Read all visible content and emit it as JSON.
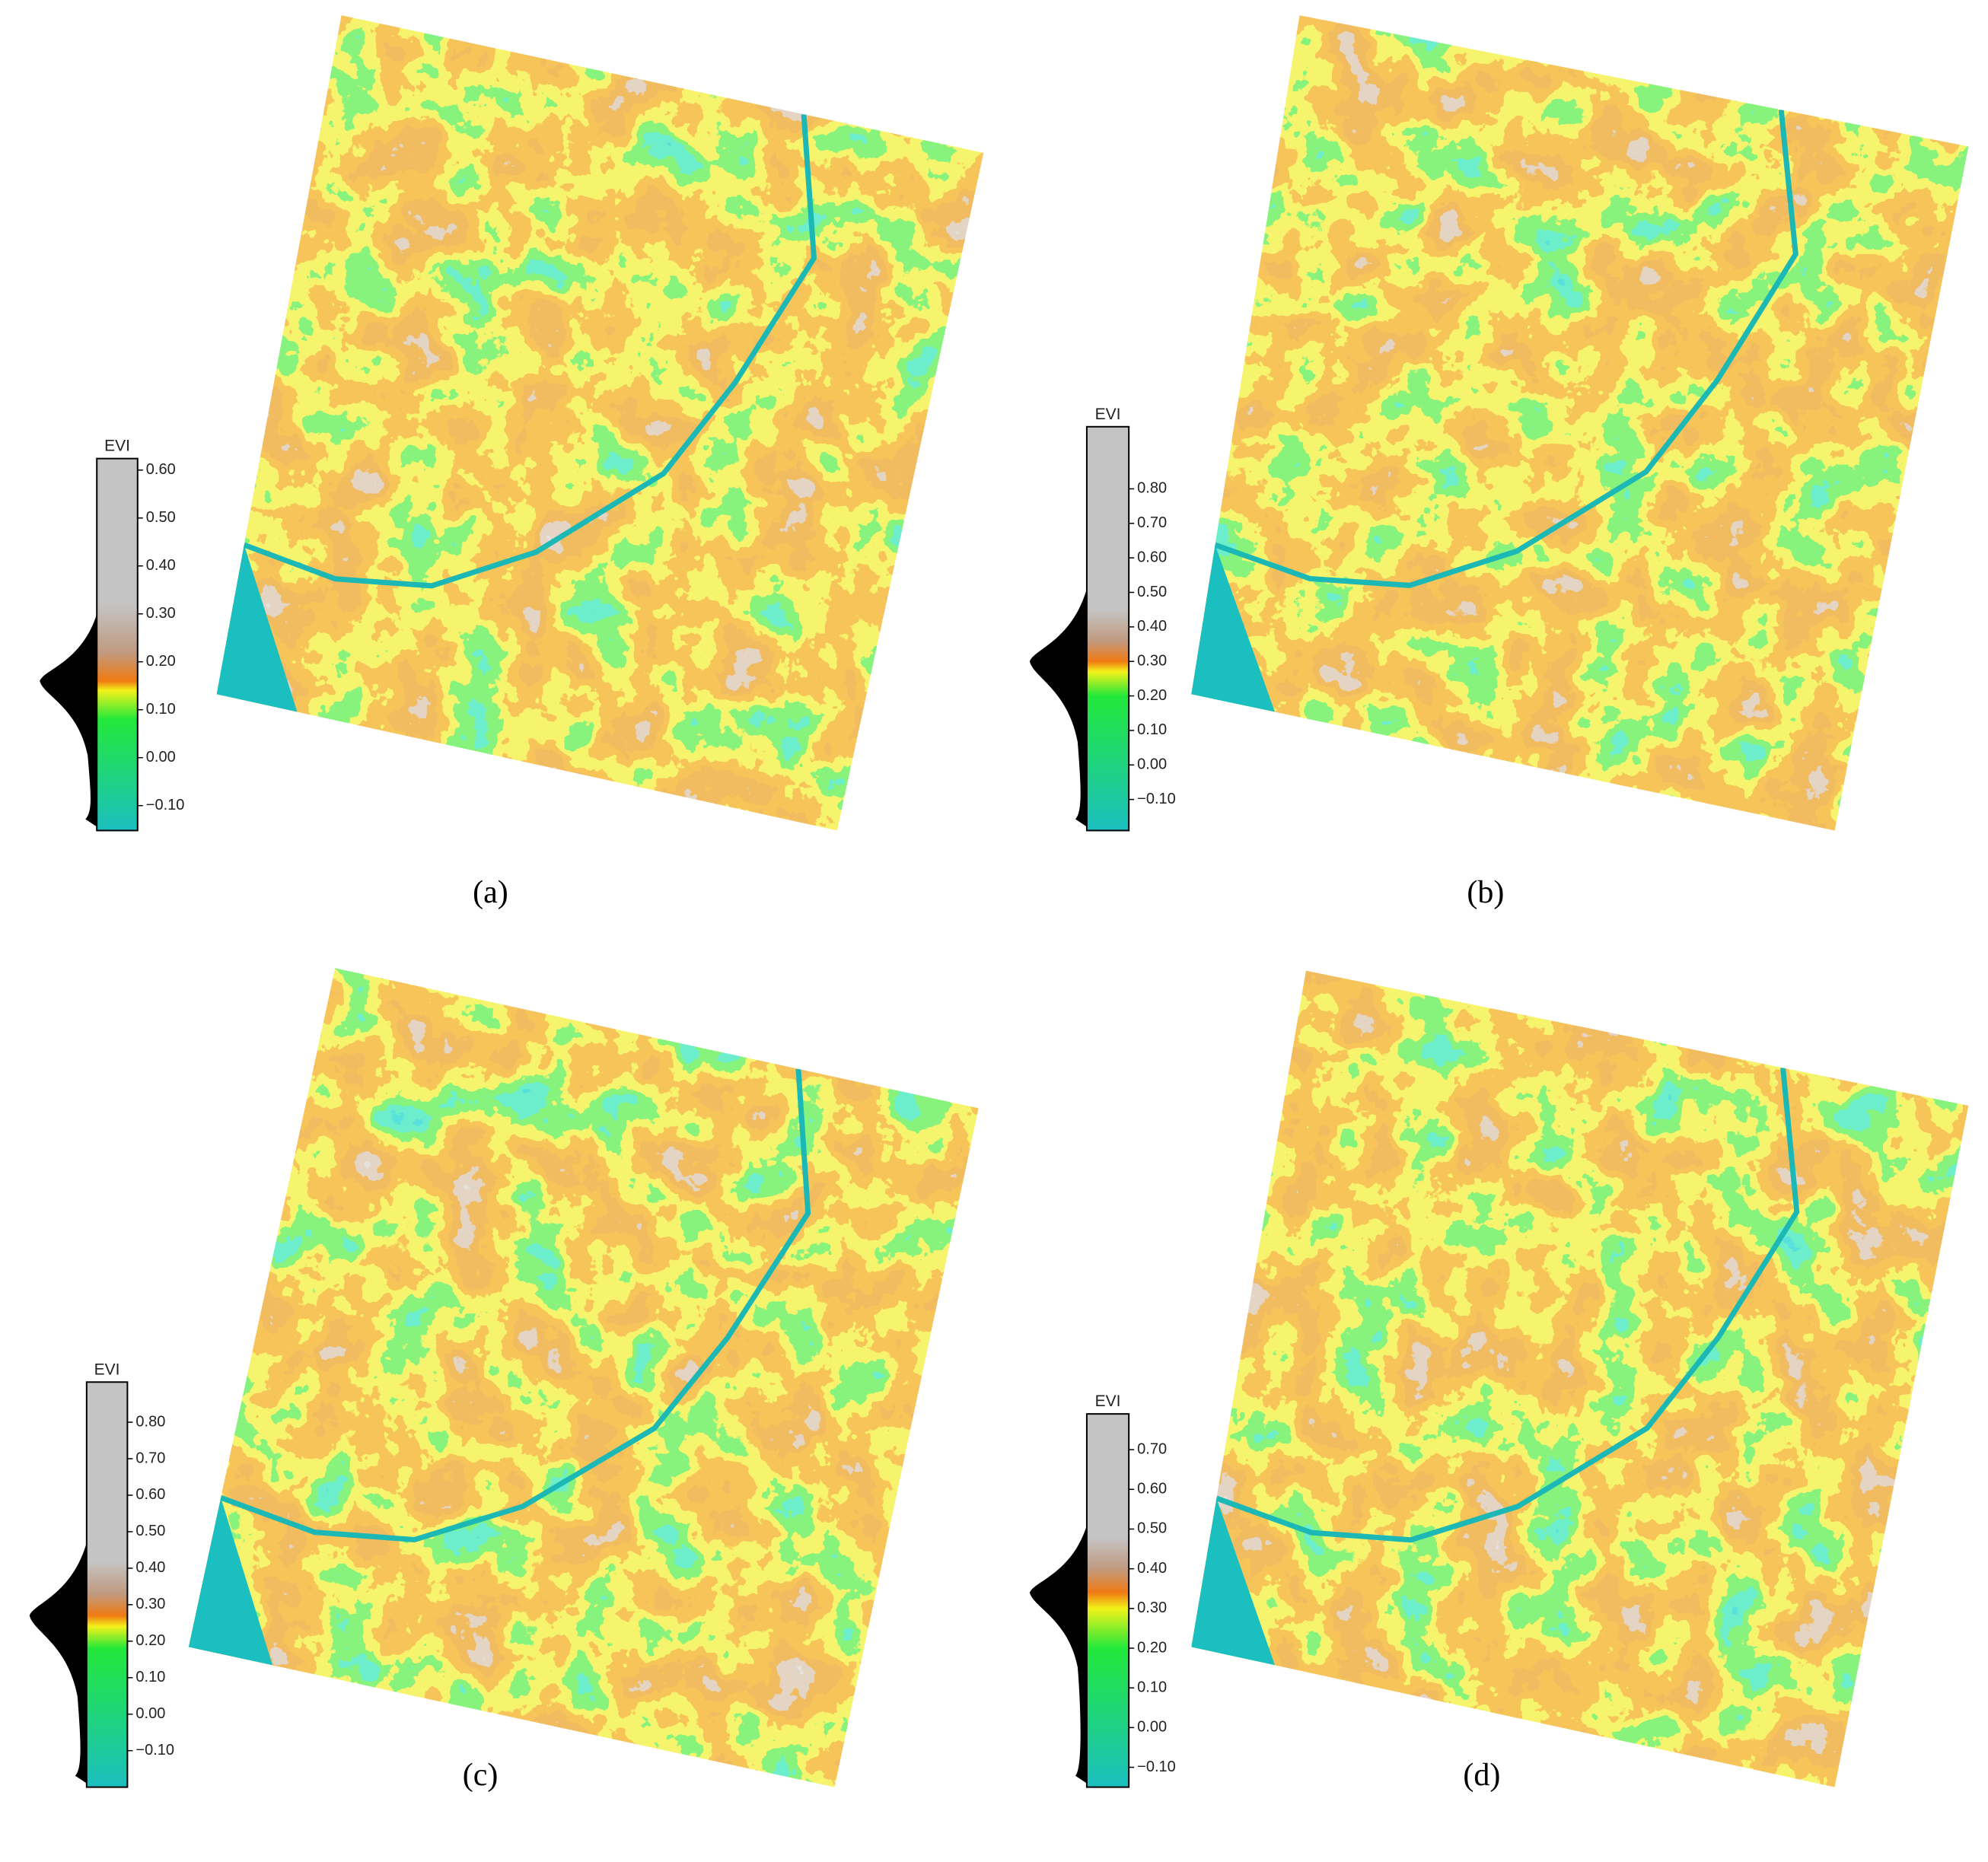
{
  "panels": [
    {
      "caption": "(a)",
      "colorbar": {
        "title": "EVI",
        "lim": [
          -0.152,
          0.624
        ],
        "ticks": [
          {
            "value": 0.6,
            "label": "0.60"
          },
          {
            "value": 0.5,
            "label": "0.50"
          },
          {
            "value": 0.4,
            "label": "0.40"
          },
          {
            "value": 0.3,
            "label": "0.30"
          },
          {
            "value": 0.2,
            "label": "0.20"
          },
          {
            "value": 0.1,
            "label": "0.10"
          },
          {
            "value": 0,
            "label": "0.00"
          },
          {
            "value": -0.1,
            "label": "−0.10"
          }
        ],
        "stops": [
          {
            "value": -0.152,
            "color": "#1bbfc0"
          },
          {
            "value": 0.08,
            "color": "#22e83a"
          },
          {
            "value": 0.14,
            "color": "#f2f21a"
          },
          {
            "value": 0.16,
            "color": "#f07a12"
          },
          {
            "value": 0.22,
            "color": "#c09a80"
          },
          {
            "value": 0.32,
            "color": "#c4c4c4"
          },
          {
            "value": 0.624,
            "color": "#c4c4c4"
          }
        ]
      }
    },
    {
      "caption": "(b)",
      "colorbar": {
        "title": "EVI",
        "lim": [
          -0.19,
          0.98
        ],
        "ticks": [
          {
            "value": 0.8,
            "label": "0.80"
          },
          {
            "value": 0.7,
            "label": "0.70"
          },
          {
            "value": 0.6,
            "label": "0.60"
          },
          {
            "value": 0.5,
            "label": "0.50"
          },
          {
            "value": 0.4,
            "label": "0.40"
          },
          {
            "value": 0.3,
            "label": "0.30"
          },
          {
            "value": 0.2,
            "label": "0.20"
          },
          {
            "value": 0.1,
            "label": "0.10"
          },
          {
            "value": 0,
            "label": "0.00"
          },
          {
            "value": -0.1,
            "label": "−0.10"
          }
        ],
        "stops": [
          {
            "value": -0.19,
            "color": "#1bbfc0"
          },
          {
            "value": 0.2,
            "color": "#22e83a"
          },
          {
            "value": 0.27,
            "color": "#f2f21a"
          },
          {
            "value": 0.3,
            "color": "#f07a12"
          },
          {
            "value": 0.36,
            "color": "#c09a80"
          },
          {
            "value": 0.45,
            "color": "#c4c4c4"
          },
          {
            "value": 0.98,
            "color": "#c4c4c4"
          }
        ]
      }
    },
    {
      "caption": "(c)",
      "colorbar": {
        "title": "EVI",
        "lim": [
          -0.2,
          0.91
        ],
        "ticks": [
          {
            "value": 0.8,
            "label": "0.80"
          },
          {
            "value": 0.7,
            "label": "0.70"
          },
          {
            "value": 0.6,
            "label": "0.60"
          },
          {
            "value": 0.5,
            "label": "0.50"
          },
          {
            "value": 0.4,
            "label": "0.40"
          },
          {
            "value": 0.3,
            "label": "0.30"
          },
          {
            "value": 0.2,
            "label": "0.20"
          },
          {
            "value": 0.1,
            "label": "0.10"
          },
          {
            "value": 0,
            "label": "0.00"
          },
          {
            "value": -0.1,
            "label": "−0.10"
          }
        ],
        "stops": [
          {
            "value": -0.2,
            "color": "#1bbfc0"
          },
          {
            "value": 0.18,
            "color": "#22e83a"
          },
          {
            "value": 0.24,
            "color": "#f2f21a"
          },
          {
            "value": 0.27,
            "color": "#f07a12"
          },
          {
            "value": 0.33,
            "color": "#c09a80"
          },
          {
            "value": 0.42,
            "color": "#c4c4c4"
          },
          {
            "value": 0.91,
            "color": "#c4c4c4"
          }
        ]
      }
    },
    {
      "caption": "(d)",
      "colorbar": {
        "title": "EVI",
        "lim": [
          -0.15,
          0.79
        ],
        "ticks": [
          {
            "value": 0.7,
            "label": "0.70"
          },
          {
            "value": 0.6,
            "label": "0.60"
          },
          {
            "value": 0.5,
            "label": "0.50"
          },
          {
            "value": 0.4,
            "label": "0.40"
          },
          {
            "value": 0.3,
            "label": "0.30"
          },
          {
            "value": 0.2,
            "label": "0.20"
          },
          {
            "value": 0.1,
            "label": "0.10"
          },
          {
            "value": 0,
            "label": "0.00"
          },
          {
            "value": -0.1,
            "label": "−0.10"
          }
        ],
        "stops": [
          {
            "value": -0.15,
            "color": "#1bbfc0"
          },
          {
            "value": 0.2,
            "color": "#22e83a"
          },
          {
            "value": 0.3,
            "color": "#f2f21a"
          },
          {
            "value": 0.34,
            "color": "#f07a12"
          },
          {
            "value": 0.4,
            "color": "#c09a80"
          },
          {
            "value": 0.48,
            "color": "#c4c4c4"
          },
          {
            "value": 0.79,
            "color": "#c4c4c4"
          }
        ]
      }
    }
  ]
}
